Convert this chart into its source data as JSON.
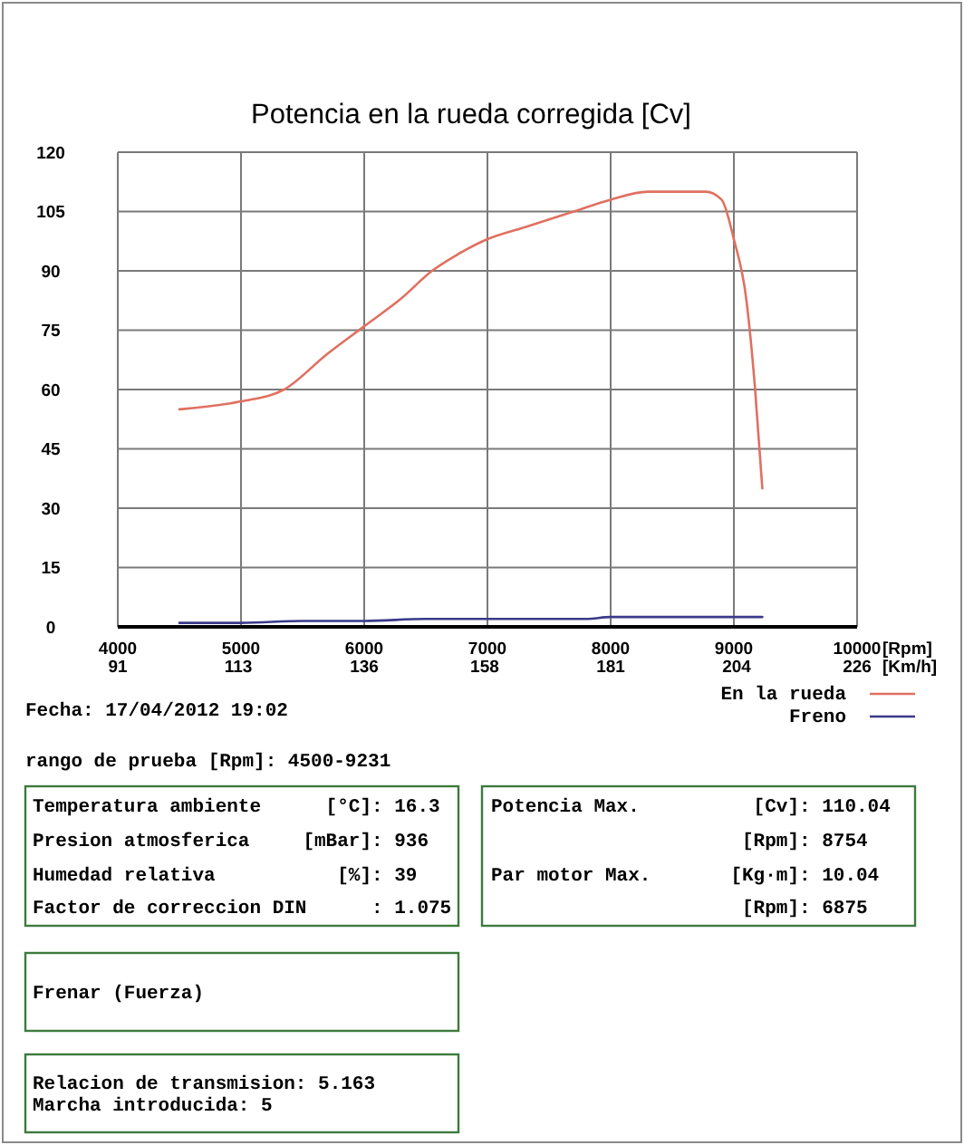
{
  "chart_data": {
    "type": "line",
    "title": "Potencia en la rueda corregida [Cv]",
    "xlabel": "[Rpm]",
    "x2label": "[Km/h]",
    "xlim": [
      4000,
      10000
    ],
    "xticks": [
      4000,
      5000,
      6000,
      7000,
      8000,
      9000,
      10000
    ],
    "x2lim": [
      91,
      226
    ],
    "x2ticks": [
      91,
      113,
      136,
      158,
      181,
      204,
      226
    ],
    "ylim": [
      0,
      120
    ],
    "yticks": [
      0,
      15,
      30,
      45,
      60,
      75,
      90,
      105,
      120
    ],
    "grid": true,
    "legend": "bottom right",
    "series": [
      {
        "name": "En la rueda",
        "color": "#e07060",
        "x": [
          4500,
          5000,
          5350,
          5700,
          6000,
          6300,
          6550,
          6750,
          7000,
          7300,
          7700,
          8000,
          8300,
          8550,
          8770,
          8900,
          9000,
          9100,
          9170,
          9231
        ],
        "values": [
          55,
          57,
          60,
          69,
          76,
          83,
          90,
          94,
          98,
          101,
          105,
          108,
          110,
          110,
          110,
          108,
          98,
          83,
          61,
          35
        ]
      },
      {
        "name": "Freno",
        "color": "#3a3a8a",
        "x": [
          4500,
          5000,
          5500,
          6000,
          6500,
          7000,
          7500,
          7800,
          8000,
          8500,
          9000,
          9231
        ],
        "values": [
          1,
          1,
          1.5,
          1.5,
          2,
          2,
          2,
          2,
          2.5,
          2.5,
          2.5,
          2.5
        ]
      }
    ],
    "annotations": [
      "Fecha: 17/04/2012 19:02",
      "rango de prueba [Rpm]: 4500-9231",
      "Temperatura ambiente [°C]: 16.3",
      "Presion atmosferica [mBar]: 936",
      "Humedad relativa [%]: 39",
      "Factor de correccion DIN : 1.075",
      "Potencia Max. [Cv]: 110.04",
      "[Rpm]: 8754",
      "Par motor Max. [Kg·m]: 10.04",
      "[Rpm]: 6875",
      "Frenar (Fuerza)",
      "Relacion de transmision: 5.163",
      "Marcha introducida: 5"
    ]
  }
}
